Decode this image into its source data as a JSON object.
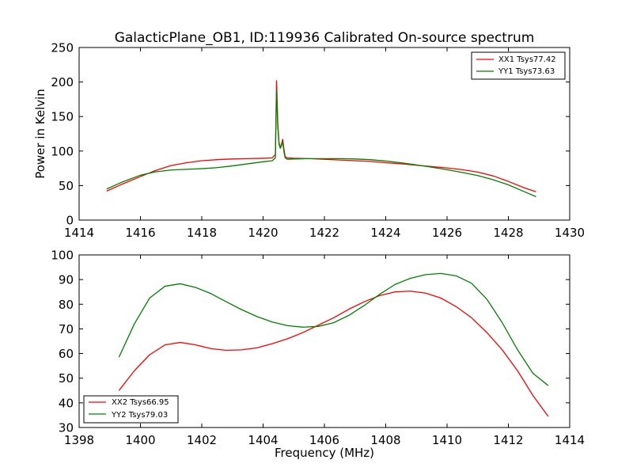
{
  "chart_data": [
    {
      "type": "line",
      "title": "GalacticPlane_OB1, ID:119936 Calibrated On-source spectrum",
      "xlabel": "",
      "ylabel": "Power in Kelvin",
      "xlim": [
        1414,
        1430
      ],
      "ylim": [
        0,
        250
      ],
      "xticks": [
        "1414",
        "1416",
        "1418",
        "1420",
        "1422",
        "1424",
        "1426",
        "1428",
        "1430"
      ],
      "yticks": [
        "0",
        "50",
        "100",
        "150",
        "200",
        "250"
      ],
      "grid": false,
      "legend_position": "top-right",
      "series": [
        {
          "name": "XX1 Tsys77.42",
          "color": "#ff0000",
          "x": [
            1414.9,
            1415.4,
            1416.0,
            1416.5,
            1417.0,
            1417.5,
            1418.0,
            1418.5,
            1419.0,
            1419.5,
            1420.0,
            1420.3,
            1420.4,
            1420.44,
            1420.48,
            1420.52,
            1420.56,
            1420.6,
            1420.64,
            1420.68,
            1420.72,
            1420.8,
            1421.0,
            1421.5,
            1422.0,
            1422.5,
            1423.0,
            1423.5,
            1424.0,
            1424.5,
            1425.0,
            1425.5,
            1426.0,
            1426.5,
            1427.0,
            1427.5,
            1428.0,
            1428.5,
            1428.9
          ],
          "y": [
            42,
            52,
            63,
            72,
            79,
            83,
            86,
            87.5,
            88.5,
            89,
            89.5,
            90,
            95,
            202,
            140,
            112,
            105,
            110,
            117,
            103,
            92,
            90,
            89.5,
            89,
            88,
            87,
            86,
            85,
            83,
            81.5,
            79.5,
            77.5,
            75.5,
            73,
            69.5,
            64,
            56,
            47,
            41
          ]
        },
        {
          "name": "YY1 Tsys73.63",
          "color": "#008000",
          "x": [
            1414.9,
            1415.4,
            1416.0,
            1416.5,
            1417.0,
            1417.5,
            1418.0,
            1418.5,
            1419.0,
            1419.5,
            1420.0,
            1420.3,
            1420.4,
            1420.44,
            1420.48,
            1420.52,
            1420.56,
            1420.6,
            1420.64,
            1420.68,
            1420.72,
            1420.8,
            1421.0,
            1421.5,
            1422.0,
            1422.5,
            1423.0,
            1423.5,
            1424.0,
            1424.5,
            1425.0,
            1425.5,
            1426.0,
            1426.5,
            1427.0,
            1427.5,
            1428.0,
            1428.5,
            1428.9
          ],
          "y": [
            45,
            55,
            65,
            70,
            72.5,
            73.5,
            74.5,
            76,
            78.5,
            81.5,
            84.5,
            86,
            90,
            188,
            135,
            110,
            104,
            108,
            113,
            99,
            90,
            88,
            88.5,
            89,
            89,
            89,
            88.5,
            87.5,
            85.5,
            83,
            80,
            76.5,
            73,
            69,
            64.5,
            58.5,
            51,
            41.5,
            34
          ]
        }
      ]
    },
    {
      "type": "line",
      "title": "",
      "xlabel": "Frequency (MHz)",
      "ylabel": "",
      "xlim": [
        1398,
        1414
      ],
      "ylim": [
        30,
        100
      ],
      "xticks": [
        "1398",
        "1400",
        "1402",
        "1404",
        "1406",
        "1408",
        "1410",
        "1412",
        "1414"
      ],
      "yticks": [
        "30",
        "40",
        "50",
        "60",
        "70",
        "80",
        "90",
        "100"
      ],
      "grid": false,
      "legend_position": "bottom-left",
      "series": [
        {
          "name": "XX2 Tsys66.95",
          "color": "#ff0000",
          "x": [
            1399.3,
            1399.8,
            1400.3,
            1400.8,
            1401.3,
            1401.8,
            1402.3,
            1402.8,
            1403.3,
            1403.8,
            1404.3,
            1404.8,
            1405.3,
            1405.8,
            1406.3,
            1406.8,
            1407.3,
            1407.8,
            1408.3,
            1408.8,
            1409.3,
            1409.8,
            1410.3,
            1410.8,
            1411.3,
            1411.8,
            1412.3,
            1412.8,
            1413.3
          ],
          "y": [
            45,
            53,
            59.5,
            63.5,
            64.5,
            63.5,
            62,
            61.3,
            61.5,
            62.3,
            64,
            66,
            68.5,
            71.5,
            74.5,
            78,
            81,
            83.5,
            85,
            85.3,
            84.5,
            82.5,
            79,
            74.5,
            68.5,
            61.5,
            53,
            43,
            34.5
          ]
        },
        {
          "name": "YY2 Tsys79.03",
          "color": "#008000",
          "x": [
            1399.3,
            1399.8,
            1400.3,
            1400.8,
            1401.3,
            1401.8,
            1402.3,
            1402.8,
            1403.3,
            1403.8,
            1404.3,
            1404.8,
            1405.3,
            1405.8,
            1406.3,
            1406.8,
            1407.3,
            1407.8,
            1408.3,
            1408.8,
            1409.3,
            1409.8,
            1410.3,
            1410.8,
            1411.3,
            1411.8,
            1412.3,
            1412.8,
            1413.3
          ],
          "y": [
            58.5,
            72,
            82.5,
            87.3,
            88.3,
            86.8,
            84.3,
            81,
            77.8,
            75,
            72.8,
            71.3,
            70.7,
            71,
            72.5,
            75.5,
            79.5,
            84,
            88,
            90.5,
            92,
            92.5,
            91.5,
            88.5,
            82,
            72.5,
            61.5,
            52,
            47
          ]
        }
      ]
    }
  ]
}
